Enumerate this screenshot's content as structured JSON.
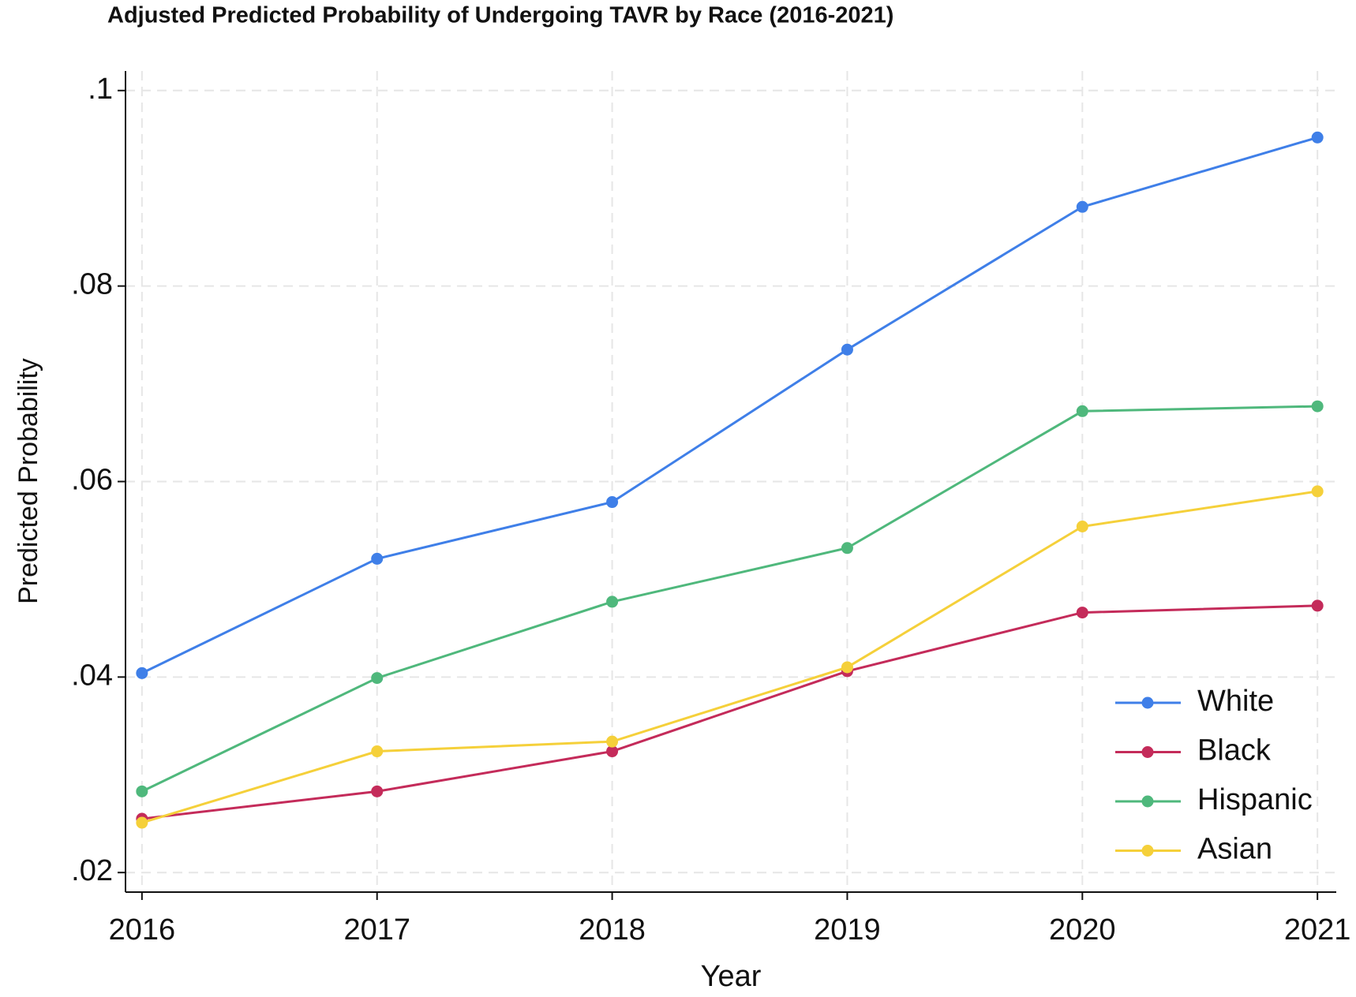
{
  "chart_data": {
    "type": "line",
    "title": "Adjusted Predicted Probability of Undergoing TAVR by Race (2016-2021)",
    "x_label": "Year",
    "y_label": "Predicted Probability",
    "x": [
      2016,
      2017,
      2018,
      2019,
      2020,
      2021
    ],
    "series": [
      {
        "name": "White",
        "color": "#3f7fe8",
        "values": [
          0.0404,
          0.0521,
          0.0579,
          0.0735,
          0.0881,
          0.0952
        ]
      },
      {
        "name": "Black",
        "color": "#c42b5a",
        "values": [
          0.0255,
          0.0283,
          0.0324,
          0.0406,
          0.0466,
          0.0473
        ]
      },
      {
        "name": "Hispanic",
        "color": "#4fb87c",
        "values": [
          0.0283,
          0.0399,
          0.0477,
          0.0532,
          0.0672,
          0.0677
        ]
      },
      {
        "name": "Asian",
        "color": "#f5d03a",
        "values": [
          0.0251,
          0.0324,
          0.0334,
          0.041,
          0.0554,
          0.059
        ]
      }
    ],
    "xlim": [
      2015.93,
      2021.08
    ],
    "ylim": [
      0.018,
      0.102
    ],
    "xticks": [
      2016,
      2017,
      2018,
      2019,
      2020,
      2021
    ],
    "yticks": [
      {
        "value": 0.02,
        "label": ".02"
      },
      {
        "value": 0.04,
        "label": ".04"
      },
      {
        "value": 0.06,
        "label": ".06"
      },
      {
        "value": 0.08,
        "label": ".08"
      },
      {
        "value": 0.1,
        "label": ".1"
      }
    ],
    "grid": true,
    "legend": "lower right"
  }
}
